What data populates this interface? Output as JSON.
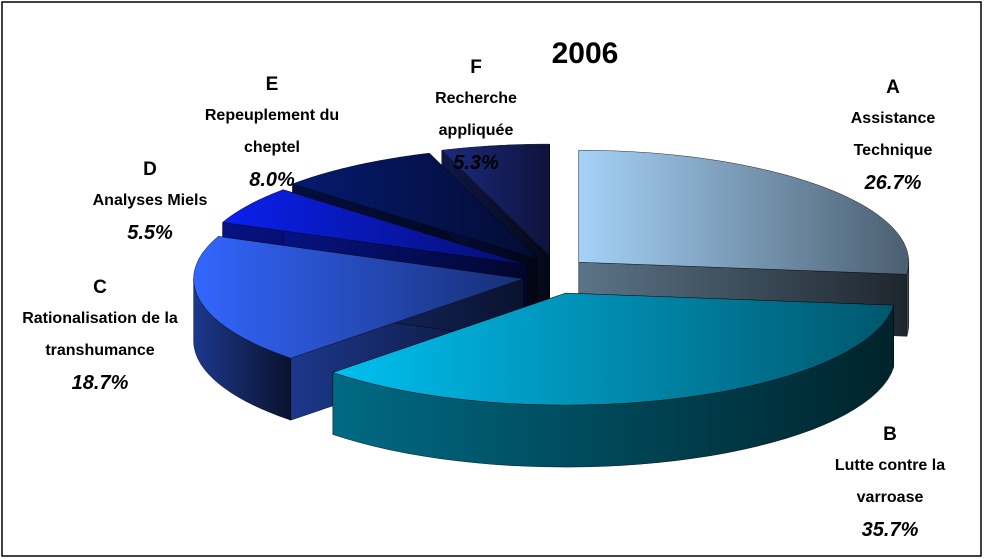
{
  "chart_data": {
    "type": "pie3d",
    "title": "2006",
    "letters": [
      "A",
      "B",
      "C",
      "D",
      "E",
      "F"
    ],
    "categories": [
      "Assistance Technique",
      "Lutte contre la varroase",
      "Rationalisation de la transhumance",
      "Analyses Miels",
      "Repeuplement du cheptel",
      "Recherche appliquée"
    ],
    "values": [
      26.7,
      35.7,
      18.7,
      5.5,
      8.0,
      5.3
    ],
    "value_labels": [
      "26.7%",
      "35.7%",
      "18.7%",
      "5.5%",
      "8.0%",
      "5.3%"
    ],
    "colors": [
      "#a6d2f8",
      "#00c0f0",
      "#3366ff",
      "#0a20f0",
      "#061a70",
      "#1c2a80"
    ]
  }
}
